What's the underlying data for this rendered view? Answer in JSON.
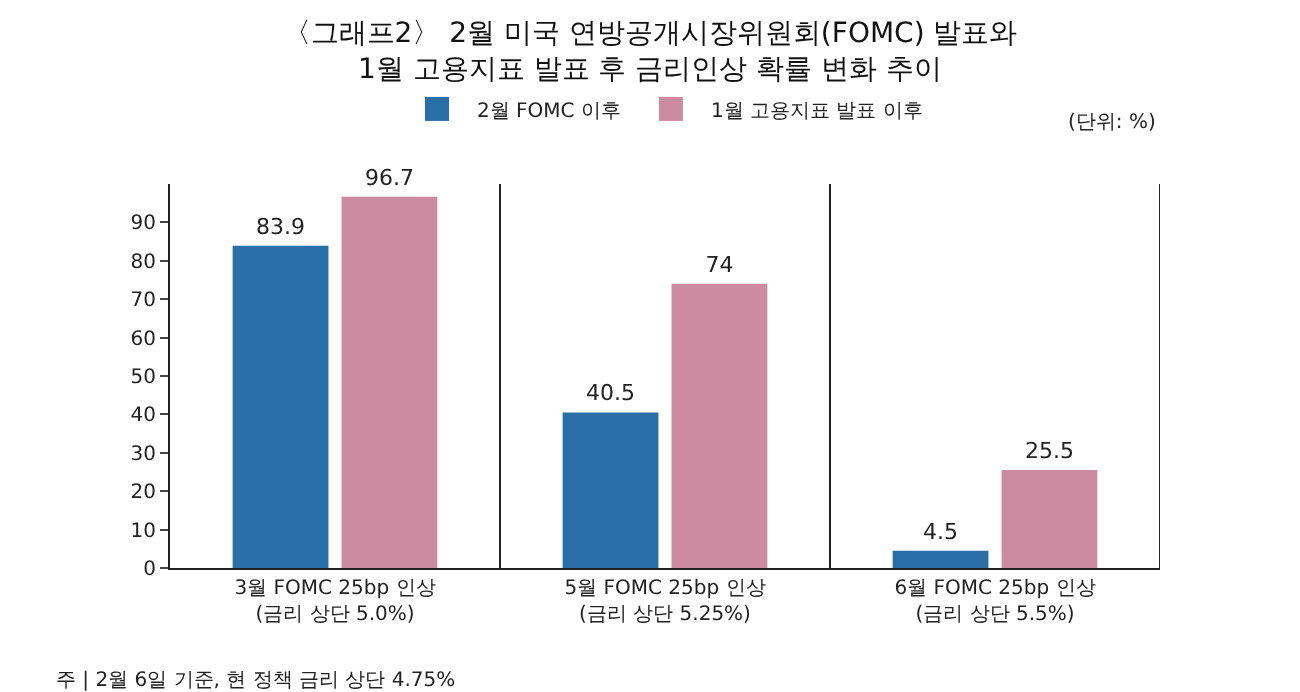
{
  "chart_data": {
    "type": "bar",
    "title": "〈그래프2〉 2월 미국 연방공개시장위원회(FOMC) 발표와\n1월 고용지표 발표 후 금리인상 확률 변화 추이",
    "categories": [
      "3월 FOMC 25bp 인상\n(금리 상단 5.0%)",
      "5월 FOMC 25bp 인상\n(금리 상단 5.25%)",
      "6월 FOMC 25bp 인상\n(금리 상단 5.5%)"
    ],
    "series": [
      {
        "name": "2월 FOMC 이후",
        "color": "#2a6fa8",
        "values": [
          83.9,
          40.5,
          4.5
        ]
      },
      {
        "name": "1월 고용지표 발표 이후",
        "color": "#cc8ba0",
        "values": [
          96.7,
          74,
          25.5
        ]
      }
    ],
    "ylim": [
      0,
      100
    ],
    "yticks": [
      0,
      10,
      20,
      30,
      40,
      50,
      60,
      70,
      80,
      90
    ],
    "data_labels": true,
    "legend": "top",
    "annotations": [
      "(단위: %)",
      "주 | 2월 6일 기준, 현 정책 금리 상단 4.75%"
    ]
  }
}
